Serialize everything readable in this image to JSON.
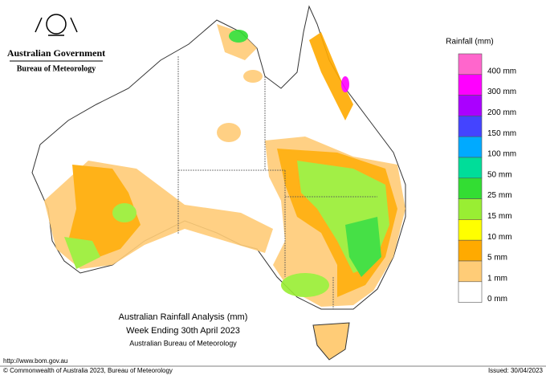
{
  "header": {
    "government": "Australian Government",
    "agency": "Bureau of Meteorology"
  },
  "legend": {
    "title": "Rainfall (mm)",
    "items": [
      {
        "label": "400 mm",
        "color": "#ff66cc"
      },
      {
        "label": "300 mm",
        "color": "#ff00ff"
      },
      {
        "label": "200 mm",
        "color": "#aa00ff"
      },
      {
        "label": "150 mm",
        "color": "#4444ff"
      },
      {
        "label": "100 mm",
        "color": "#00aaff"
      },
      {
        "label": "50 mm",
        "color": "#00dd99"
      },
      {
        "label": "25 mm",
        "color": "#33dd33"
      },
      {
        "label": "15 mm",
        "color": "#99ee33"
      },
      {
        "label": "10 mm",
        "color": "#ffff00"
      },
      {
        "label": "5 mm",
        "color": "#ffaa00"
      },
      {
        "label": "1 mm",
        "color": "#ffcc77"
      },
      {
        "label": "0 mm",
        "color": "#ffffff"
      }
    ]
  },
  "map_title": {
    "line1": "Australian Rainfall Analysis (mm)",
    "line2": "Week Ending 30th April 2023",
    "line3": "Australian Bureau of Meteorology"
  },
  "footer": {
    "url": "http://www.bom.gov.au",
    "copyright": "© Commonwealth of Australia 2023, Bureau of Meteorology",
    "issued": "Issued: 30/04/2023"
  }
}
